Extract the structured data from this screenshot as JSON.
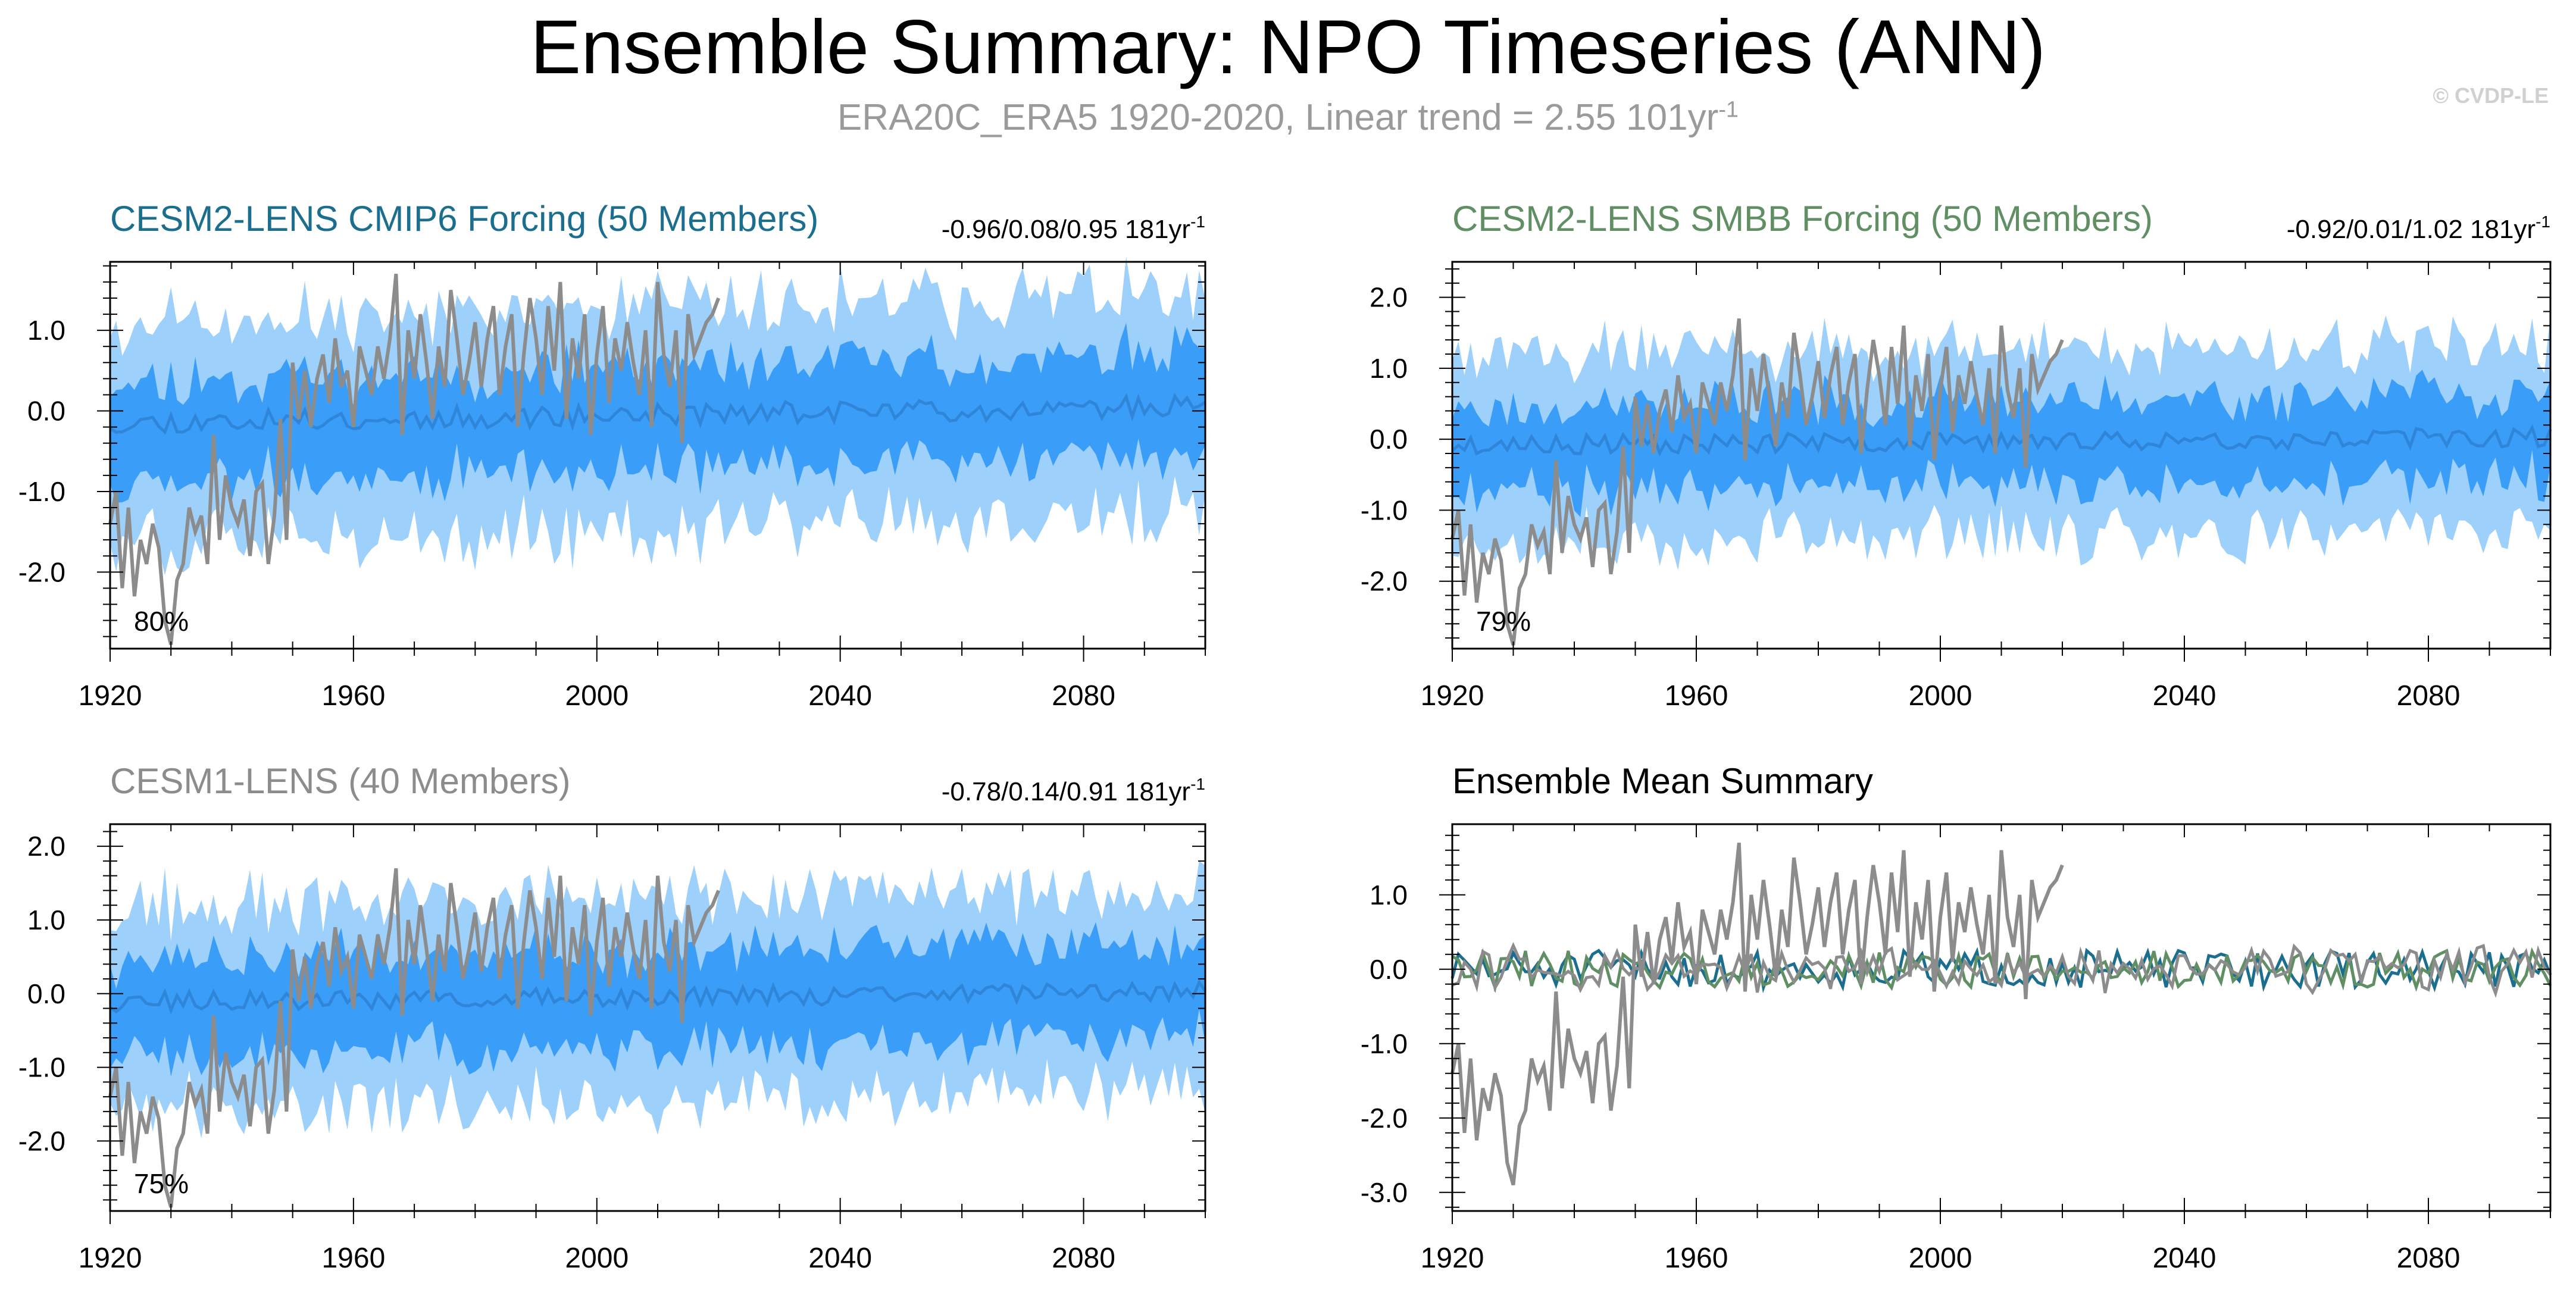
{
  "page": {
    "title": "Ensemble Summary: NPO Timeseries (ANN)",
    "subtitle_main": "ERA20C_ERA5 1920-2020, Linear trend = 2.55 101yr",
    "subtitle_sup": "-1",
    "credit": "© CVDP-LE"
  },
  "colors": {
    "outer_band": "#9dd0fb",
    "inner_band": "#3a9df8",
    "ensemble_mean": "#2f86d8",
    "observations": "#8c8c8c",
    "cesm2_cmip6": "#1b6e8e",
    "cesm2_smbb": "#5f8f63",
    "cesm1": "#8c8c8c"
  },
  "chart_data": [
    {
      "id": "cesm2-cmip6",
      "type": "area",
      "title": "CESM2-LENS CMIP6 Forcing (50 Members)",
      "title_color": "#1b6e8e",
      "stats_main": "-0.96/0.08/0.95 181yr",
      "stats_sup": "-1",
      "percent_label": "80%",
      "xlim": [
        1920,
        2100
      ],
      "ylim": [
        -2.95,
        1.85
      ],
      "yticks": [
        1.0,
        0.0,
        -1.0,
        -2.0
      ],
      "ytick_labels": [
        "1.0",
        "0.0",
        "-1.0",
        "-2.0"
      ],
      "xticks": [
        1920,
        1960,
        2000,
        2040,
        2080
      ],
      "xtick_labels": [
        "1920",
        "1960",
        "2000",
        "2040",
        "2080"
      ],
      "seed": 11,
      "inner_half_width": 0.62,
      "outer_half_width": 1.32,
      "mean_start": -0.25,
      "mean_end": 0.1
    },
    {
      "id": "cesm2-smbb",
      "type": "area",
      "title": "CESM2-LENS SMBB Forcing (50 Members)",
      "title_color": "#5f8f63",
      "stats_main": "-0.92/0.01/1.02 181yr",
      "stats_sup": "-1",
      "percent_label": "79%",
      "xlim": [
        1920,
        2100
      ],
      "ylim": [
        -2.95,
        2.5
      ],
      "yticks": [
        2.0,
        1.0,
        0.0,
        -1.0,
        -2.0
      ],
      "ytick_labels": [
        "2.0",
        "1.0",
        "0.0",
        "-1.0",
        "-2.0"
      ],
      "xticks": [
        1920,
        1960,
        2000,
        2040,
        2080
      ],
      "xtick_labels": [
        "1920",
        "1960",
        "2000",
        "2040",
        "2080"
      ],
      "seed": 23,
      "inner_half_width": 0.6,
      "outer_half_width": 1.3,
      "mean_start": -0.15,
      "mean_end": 0.05
    },
    {
      "id": "cesm1",
      "type": "area",
      "title": "CESM1-LENS (40 Members)",
      "title_color": "#8c8c8c",
      "stats_main": "-0.78/0.14/0.91 181yr",
      "stats_sup": "-1",
      "percent_label": "75%",
      "xlim": [
        1920,
        2100
      ],
      "ylim": [
        -2.95,
        2.3
      ],
      "yticks": [
        2.0,
        1.0,
        0.0,
        -1.0,
        -2.0
      ],
      "ytick_labels": [
        "2.0",
        "1.0",
        "0.0",
        "-1.0",
        "-2.0"
      ],
      "xticks": [
        1920,
        1960,
        2000,
        2040,
        2080
      ],
      "xtick_labels": [
        "1920",
        "1960",
        "2000",
        "2040",
        "2080"
      ],
      "seed": 37,
      "inner_half_width": 0.65,
      "outer_half_width": 1.35,
      "mean_start": -0.2,
      "mean_end": 0.05
    },
    {
      "id": "ensemble-mean",
      "type": "line",
      "title": "Ensemble Mean Summary",
      "title_color": "#000000",
      "xlim": [
        1920,
        2100
      ],
      "ylim": [
        -3.25,
        1.95
      ],
      "yticks": [
        1.0,
        0.0,
        -1.0,
        -2.0,
        -3.0
      ],
      "ytick_labels": [
        "1.0",
        "0.0",
        "-1.0",
        "-2.0",
        "-3.0"
      ],
      "xticks": [
        1920,
        1960,
        2000,
        2040,
        2080
      ],
      "xtick_labels": [
        "1920",
        "1960",
        "2000",
        "2040",
        "2080"
      ],
      "series_colors": [
        "#1b6e8e",
        "#5f8f63",
        "#8c8c8c"
      ],
      "seed": 51
    }
  ],
  "observations": {
    "x": [
      1920,
      1921,
      1922,
      1923,
      1924,
      1925,
      1926,
      1927,
      1928,
      1929,
      1930,
      1931,
      1932,
      1933,
      1934,
      1935,
      1936,
      1937,
      1938,
      1939,
      1940,
      1941,
      1942,
      1943,
      1944,
      1945,
      1946,
      1947,
      1948,
      1949,
      1950,
      1951,
      1952,
      1953,
      1954,
      1955,
      1956,
      1957,
      1958,
      1959,
      1960,
      1961,
      1962,
      1963,
      1964,
      1965,
      1966,
      1967,
      1968,
      1969,
      1970,
      1971,
      1972,
      1973,
      1974,
      1975,
      1976,
      1977,
      1978,
      1979,
      1980,
      1981,
      1982,
      1983,
      1984,
      1985,
      1986,
      1987,
      1988,
      1989,
      1990,
      1991,
      1992,
      1993,
      1994,
      1995,
      1996,
      1997,
      1998,
      1999,
      2000,
      2001,
      2002,
      2003,
      2004,
      2005,
      2006,
      2007,
      2008,
      2009,
      2010,
      2011,
      2012,
      2013,
      2014,
      2015,
      2016,
      2017,
      2018,
      2019,
      2020
    ],
    "y": [
      -1.4,
      -1.0,
      -2.2,
      -1.2,
      -2.3,
      -1.6,
      -1.9,
      -1.4,
      -1.7,
      -2.6,
      -2.9,
      -2.1,
      -1.9,
      -1.2,
      -1.5,
      -1.3,
      -1.9,
      -0.3,
      -1.6,
      -0.8,
      -1.2,
      -1.4,
      -1.1,
      -1.8,
      -1.0,
      -0.9,
      -1.9,
      -1.3,
      -0.1,
      -1.6,
      0.6,
      -0.1,
      0.5,
      -0.2,
      0.4,
      0.7,
      0.1,
      0.9,
      0.3,
      0.5,
      -0.2,
      0.8,
      0.5,
      0.2,
      0.8,
      0.4,
      0.9,
      1.7,
      -0.3,
      1.0,
      0.4,
      1.2,
      0.6,
      -0.1,
      0.8,
      0.3,
      1.5,
      0.9,
      0.2,
      0.6,
      1.1,
      0.3,
      0.9,
      1.3,
      0.2,
      0.8,
      1.2,
      -0.2,
      0.7,
      1.4,
      0.9,
      0.2,
      1.3,
      0.5,
      1.6,
      -0.1,
      0.9,
      0.4,
      1.2,
      -0.3,
      0.7,
      1.3,
      0.1,
      0.9,
      0.5,
      1.1,
      0.6,
      0.2,
      1.0,
      -0.2,
      1.6,
      0.7,
      0.3,
      1.0,
      -0.4,
      1.2,
      0.7,
      0.9,
      1.1,
      1.2,
      1.4
    ]
  }
}
